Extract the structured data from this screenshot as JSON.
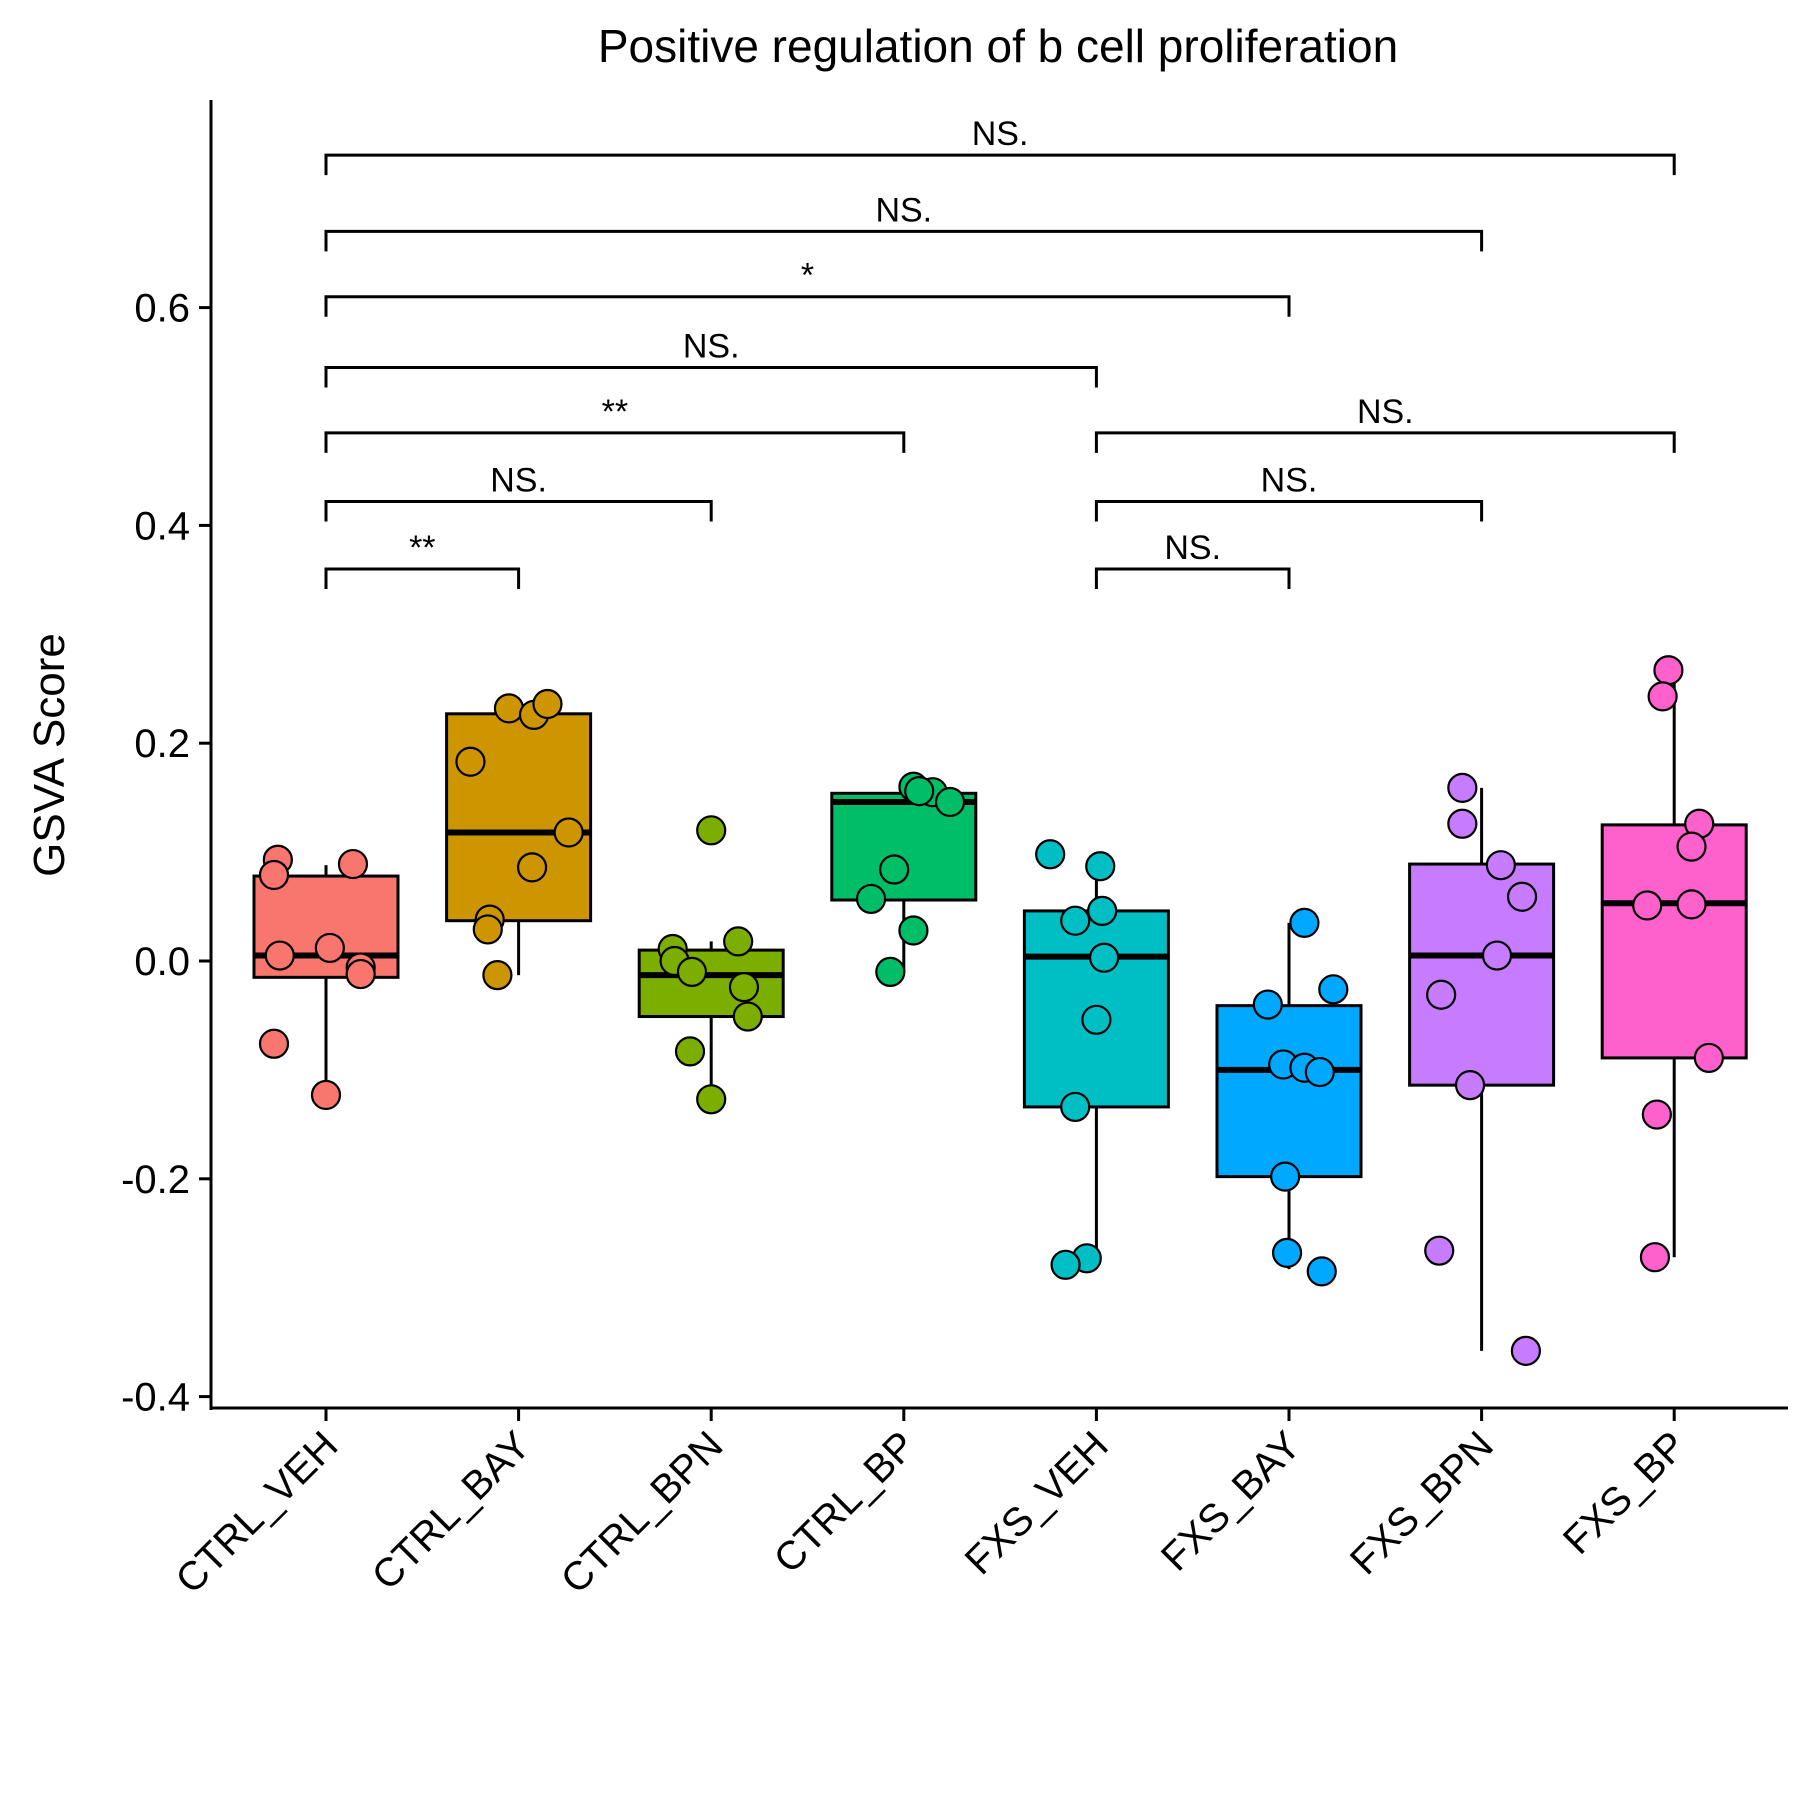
{
  "chart_data": {
    "type": "box",
    "title": "Positive regulation of b cell proliferation",
    "xlabel": "",
    "ylabel": "GSVA Score",
    "ylim": [
      -0.4,
      0.78
    ],
    "yticks": [
      -0.4,
      -0.2,
      0.0,
      0.2,
      0.4,
      0.6
    ],
    "ytick_labels": [
      "-0.4",
      "-0.2",
      "0.0",
      "0.2",
      "0.4",
      "0.6"
    ],
    "grid": false,
    "legend": "none",
    "categories": [
      "CTRL_VEH",
      "CTRL_BAY",
      "CTRL_BPN",
      "CTRL_BP",
      "FXS_VEH",
      "FXS_BAY",
      "FXS_BPN",
      "FXS_BP"
    ],
    "colors": [
      "#F8766D",
      "#CD9600",
      "#7CAE00",
      "#00BE67",
      "#00BFC4",
      "#00A9FF",
      "#C77CFF",
      "#FF61CC"
    ],
    "boxes": [
      {
        "q1": -0.015,
        "median": 0.005,
        "q3": 0.078,
        "whisker_low": -0.123,
        "whisker_high": 0.088
      },
      {
        "q1": 0.037,
        "median": 0.118,
        "q3": 0.227,
        "whisker_low": -0.013,
        "whisker_high": 0.236
      },
      {
        "q1": -0.051,
        "median": -0.013,
        "q3": 0.01,
        "whisker_low": -0.127,
        "whisker_high": 0.018
      },
      {
        "q1": 0.056,
        "median": 0.146,
        "q3": 0.154,
        "whisker_low": -0.01,
        "whisker_high": 0.16
      },
      {
        "q1": -0.134,
        "median": 0.004,
        "q3": 0.046,
        "whisker_low": -0.273,
        "whisker_high": 0.087
      },
      {
        "q1": -0.198,
        "median": -0.1,
        "q3": -0.041,
        "whisker_low": -0.283,
        "whisker_high": 0.035
      },
      {
        "q1": -0.114,
        "median": 0.005,
        "q3": 0.089,
        "whisker_low": -0.358,
        "whisker_high": 0.159
      },
      {
        "q1": -0.089,
        "median": 0.053,
        "q3": 0.125,
        "whisker_low": -0.272,
        "whisker_high": 0.267
      }
    ],
    "points": [
      [
        0.093,
        0.079,
        0.089,
        0.005,
        0.012,
        -0.006,
        -0.012,
        -0.076,
        -0.123
      ],
      [
        0.232,
        0.226,
        0.236,
        0.183,
        0.118,
        0.086,
        0.038,
        0.029,
        -0.013
      ],
      [
        0.12,
        0.011,
        0.0,
        -0.01,
        0.018,
        -0.024,
        -0.051,
        -0.083,
        -0.127
      ],
      [
        0.16,
        0.155,
        0.156,
        0.146,
        0.084,
        0.057,
        0.028,
        -0.01
      ],
      [
        0.098,
        0.087,
        0.046,
        0.037,
        0.003,
        -0.054,
        -0.134,
        -0.273,
        -0.279
      ],
      [
        0.035,
        -0.026,
        -0.04,
        -0.095,
        -0.098,
        -0.102,
        -0.198,
        -0.268,
        -0.285
      ],
      [
        0.159,
        0.126,
        0.088,
        0.059,
        0.005,
        -0.031,
        -0.114,
        -0.266,
        -0.358
      ],
      [
        0.267,
        0.243,
        0.126,
        0.105,
        0.051,
        0.052,
        -0.089,
        -0.141,
        -0.272
      ]
    ],
    "point_x_offsets": [
      [
        -0.25,
        -0.27,
        0.14,
        -0.24,
        0.02,
        0.18,
        0.18,
        -0.27,
        0.0
      ],
      [
        -0.05,
        0.08,
        0.15,
        -0.25,
        0.26,
        0.07,
        -0.15,
        -0.16,
        -0.11
      ],
      [
        0.0,
        -0.2,
        -0.19,
        -0.1,
        0.14,
        0.17,
        0.19,
        -0.11,
        0.0
      ],
      [
        0.05,
        0.15,
        0.08,
        0.24,
        -0.05,
        -0.17,
        0.05,
        -0.07
      ],
      [
        -0.24,
        0.02,
        0.03,
        -0.11,
        0.04,
        0.0,
        -0.11,
        -0.05,
        -0.16
      ],
      [
        0.08,
        0.23,
        -0.11,
        -0.03,
        0.08,
        0.16,
        -0.02,
        -0.01,
        0.17
      ],
      [
        -0.1,
        -0.1,
        0.1,
        0.21,
        0.08,
        -0.21,
        -0.06,
        -0.22,
        0.23
      ],
      [
        -0.03,
        -0.06,
        0.13,
        0.09,
        -0.14,
        0.09,
        0.18,
        -0.09,
        -0.1
      ]
    ],
    "comparisons": [
      {
        "groups": [
          0,
          7
        ],
        "label": "NS.",
        "y": 0.74
      },
      {
        "groups": [
          0,
          6
        ],
        "label": "NS.",
        "y": 0.67
      },
      {
        "groups": [
          0,
          5
        ],
        "label": "*",
        "y": 0.61
      },
      {
        "groups": [
          0,
          4
        ],
        "label": "NS.",
        "y": 0.545
      },
      {
        "groups": [
          0,
          3
        ],
        "label": "**",
        "y": 0.485
      },
      {
        "groups": [
          4,
          7
        ],
        "label": "NS.",
        "y": 0.485
      },
      {
        "groups": [
          0,
          2
        ],
        "label": "NS.",
        "y": 0.422
      },
      {
        "groups": [
          4,
          6
        ],
        "label": "NS.",
        "y": 0.422
      },
      {
        "groups": [
          0,
          1
        ],
        "label": "**",
        "y": 0.36
      },
      {
        "groups": [
          4,
          5
        ],
        "label": "NS.",
        "y": 0.36
      }
    ]
  }
}
